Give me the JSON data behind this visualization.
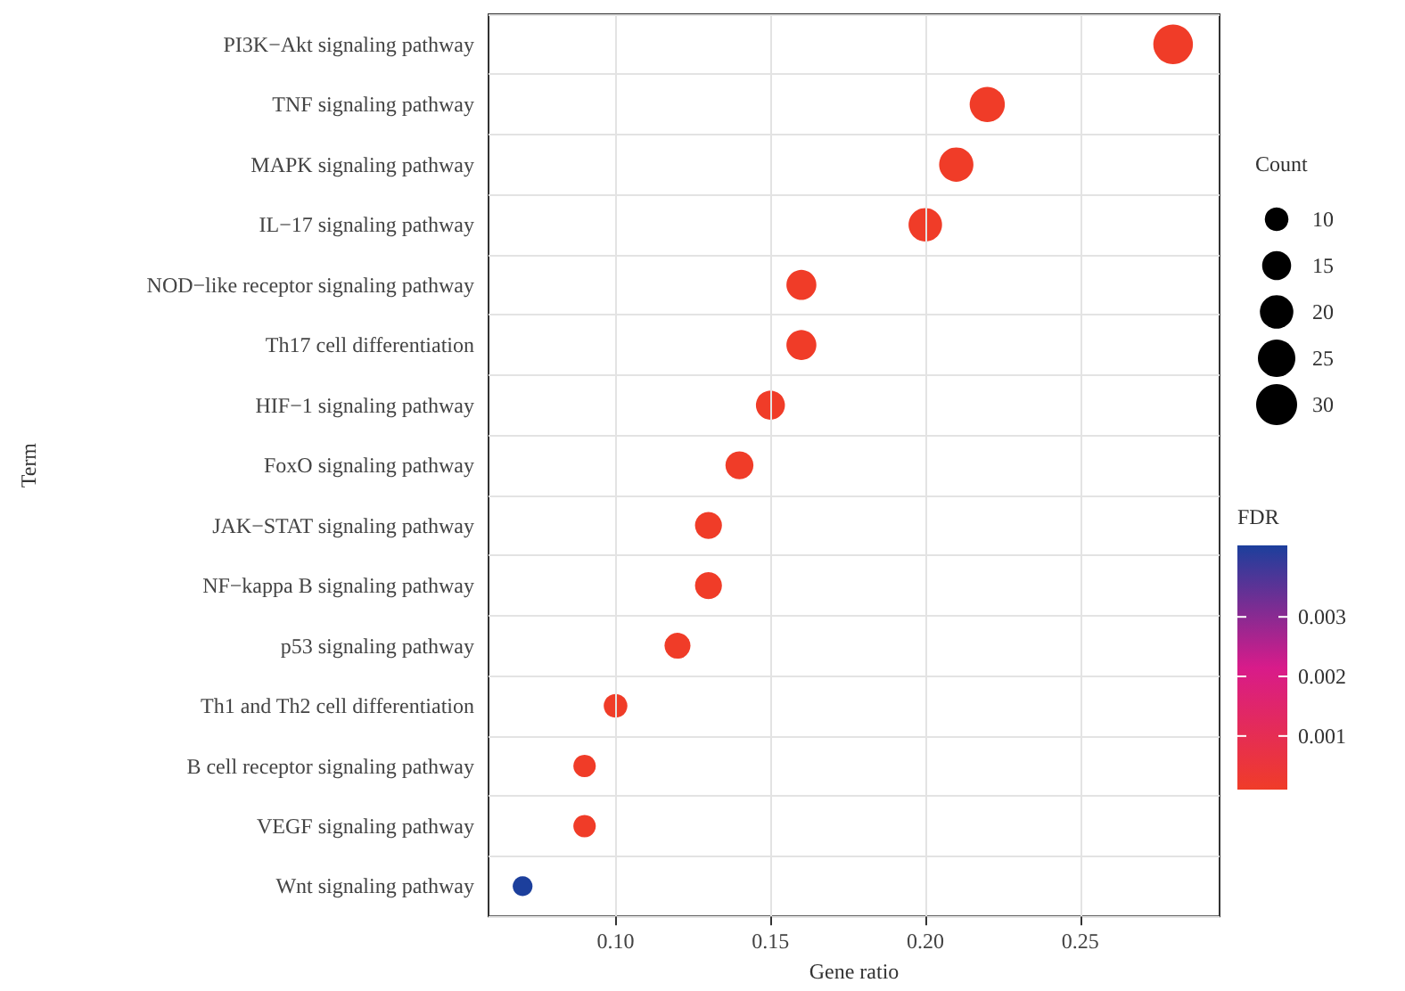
{
  "chart_data": {
    "type": "bubble",
    "categories": [
      "PI3K−Akt signaling pathway",
      "TNF signaling pathway",
      "MAPK signaling pathway",
      "IL−17 signaling pathway",
      "NOD−like receptor signaling pathway",
      "Th17 cell differentiation",
      "HIF−1 signaling pathway",
      "FoxO signaling pathway",
      "JAK−STAT signaling pathway",
      "NF−kappa B signaling pathway",
      "p53 signaling pathway",
      "Th1 and Th2 cell differentiation",
      "B cell receptor signaling pathway",
      "VEGF signaling pathway",
      "Wnt signaling pathway"
    ],
    "values": [
      0.28,
      0.22,
      0.21,
      0.2,
      0.16,
      0.16,
      0.15,
      0.14,
      0.13,
      0.13,
      0.12,
      0.1,
      0.09,
      0.09,
      0.07
    ],
    "sizes": [
      28,
      22,
      21,
      20,
      16,
      16,
      15,
      14,
      13,
      13,
      12,
      10,
      9,
      9,
      7
    ],
    "size_legend": [
      10,
      15,
      20,
      25,
      30
    ],
    "cvalues": [
      0.0001,
      0.0001,
      0.0001,
      0.0001,
      0.0001,
      0.0001,
      0.0001,
      0.0001,
      0.0001,
      0.0001,
      0.0001,
      0.0001,
      0.0001,
      0.0001,
      0.0042
    ],
    "clim": [
      0.0001,
      0.0042
    ],
    "cticks": [
      0.001,
      0.002,
      0.003
    ],
    "xlim": [
      0.059,
      0.295
    ],
    "xticks": [
      {
        "value": 0.1,
        "label": "0.10"
      },
      {
        "value": 0.15,
        "label": "0.15"
      },
      {
        "value": 0.2,
        "label": "0.20"
      },
      {
        "value": 0.25,
        "label": "0.25"
      }
    ],
    "xlabel": "Gene ratio",
    "ylabel": "Term",
    "legend_title": "Count",
    "clabel": "FDR",
    "grid": true,
    "orientation": "horizontal"
  }
}
